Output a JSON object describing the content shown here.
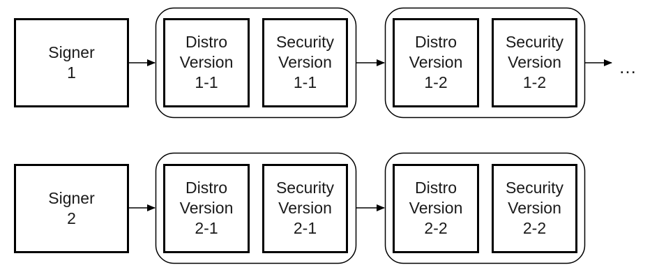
{
  "rows": [
    {
      "signer": {
        "line1": "Signer",
        "line2": "1"
      },
      "groups": [
        {
          "distro": {
            "line1": "Distro",
            "line2": "Version",
            "line3": "1-1"
          },
          "security": {
            "line1": "Security",
            "line2": "Version",
            "line3": "1-1"
          }
        },
        {
          "distro": {
            "line1": "Distro",
            "line2": "Version",
            "line3": "1-2"
          },
          "security": {
            "line1": "Security",
            "line2": "Version",
            "line3": "1-2"
          }
        }
      ],
      "continuation": "…"
    },
    {
      "signer": {
        "line1": "Signer",
        "line2": "2"
      },
      "groups": [
        {
          "distro": {
            "line1": "Distro",
            "line2": "Version",
            "line3": "2-1"
          },
          "security": {
            "line1": "Security",
            "line2": "Version",
            "line3": "2-1"
          }
        },
        {
          "distro": {
            "line1": "Distro",
            "line2": "Version",
            "line3": "2-2"
          },
          "security": {
            "line1": "Security",
            "line2": "Version",
            "line3": "2-2"
          }
        }
      ]
    }
  ],
  "colors": {
    "stroke": "#000000",
    "text": "#1a1a1a",
    "background": "#ffffff"
  }
}
